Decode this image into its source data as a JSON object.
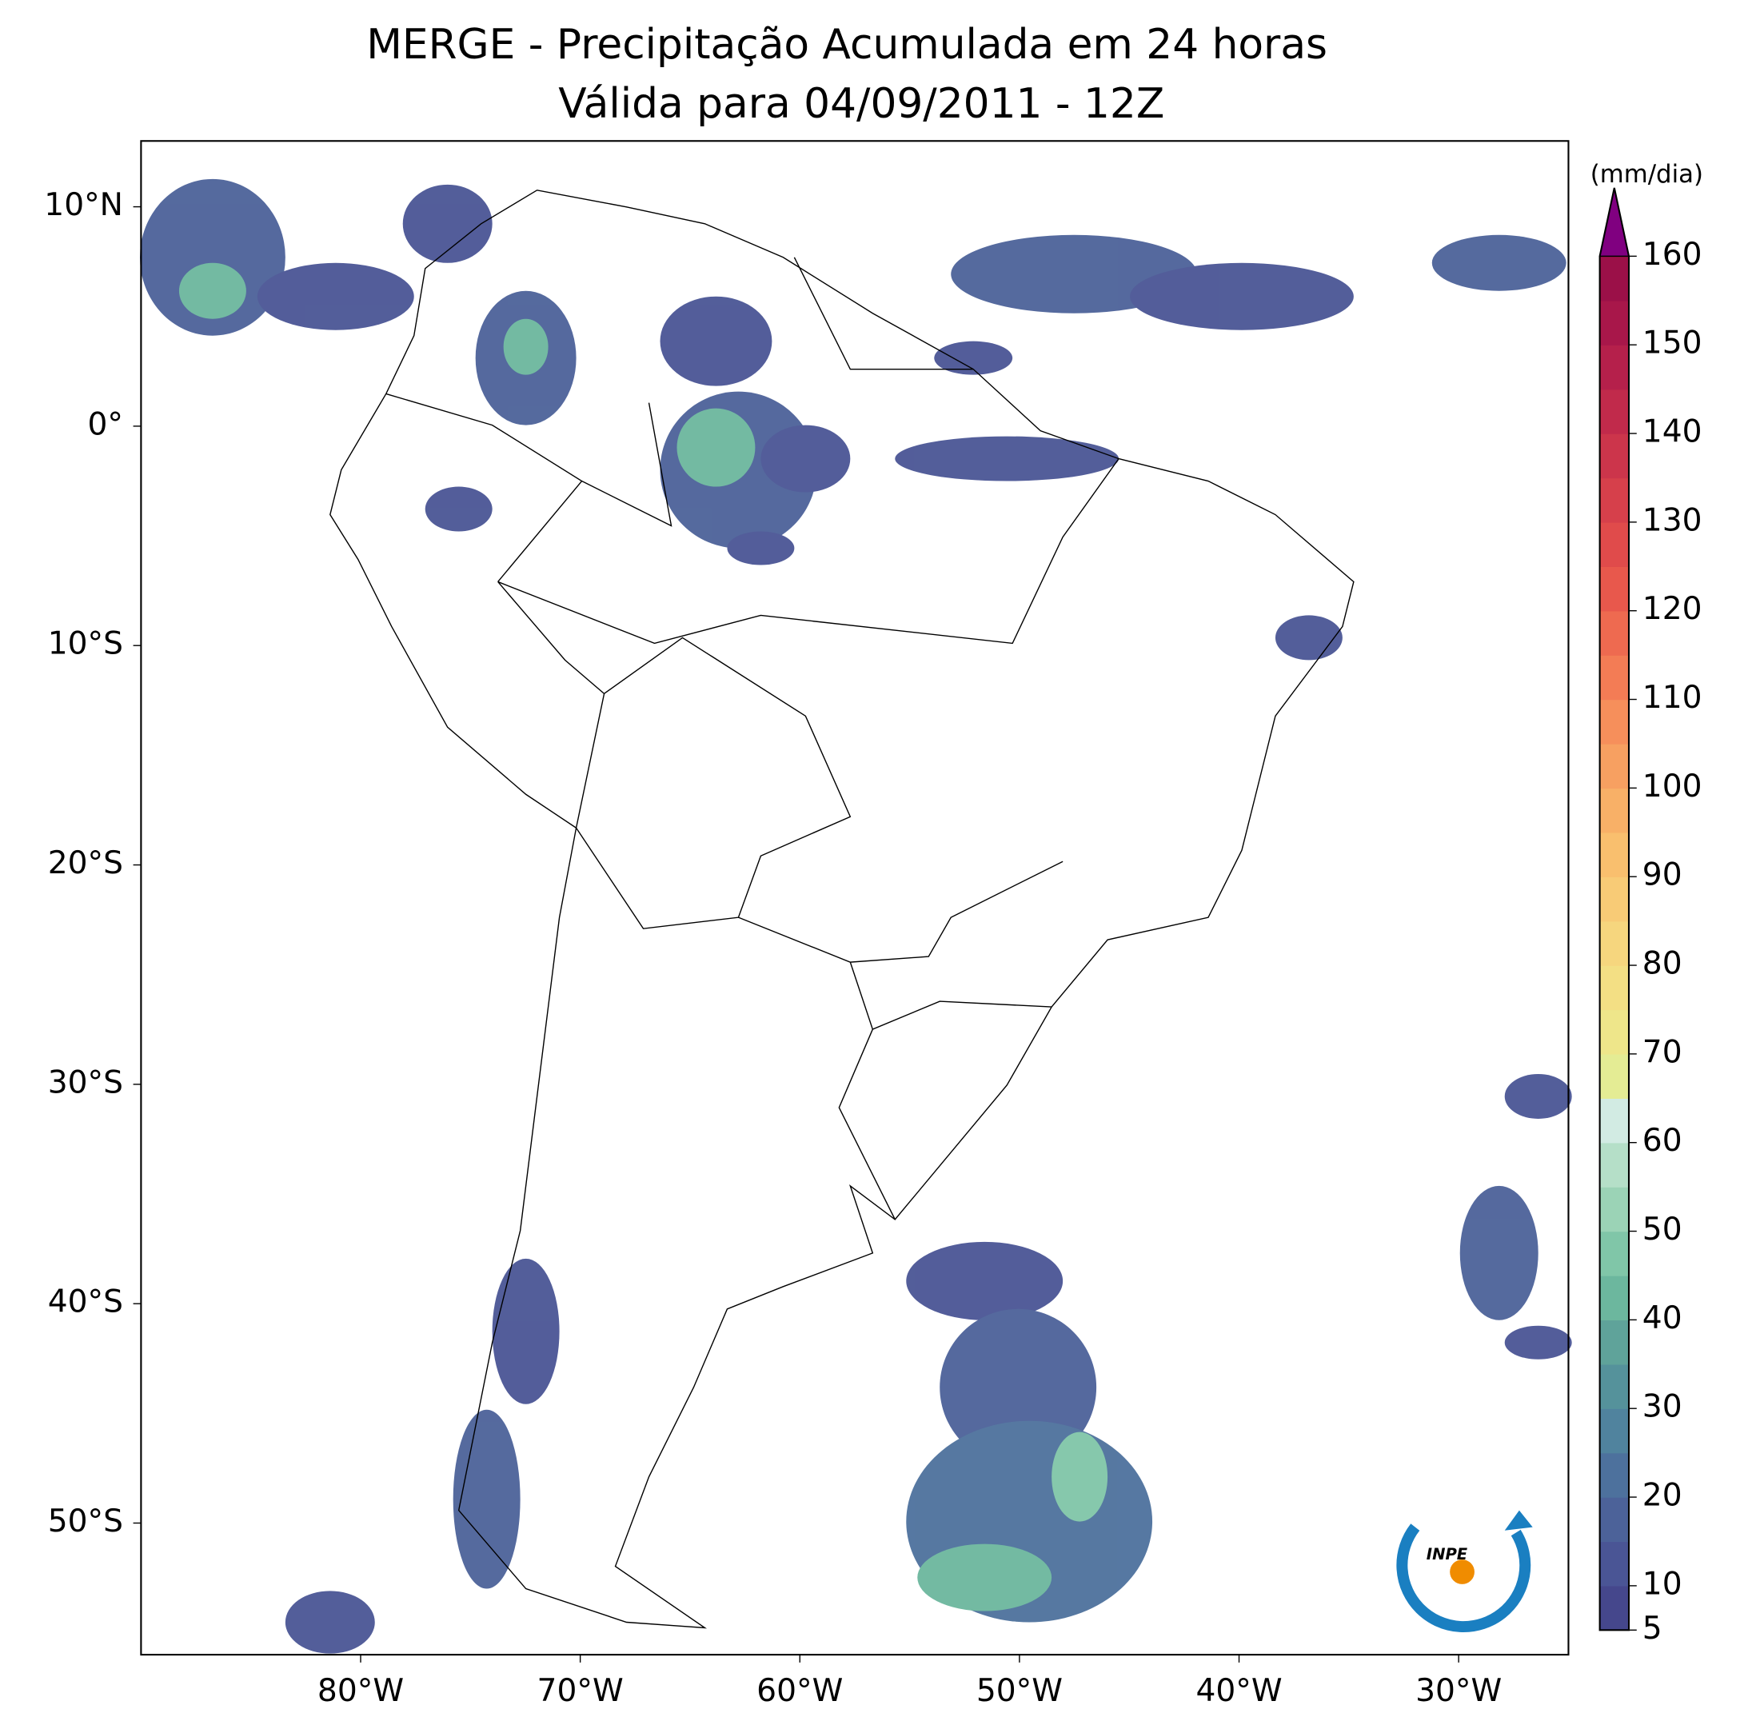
{
  "chart_data": {
    "type": "map",
    "title": "MERGE - Precipitação Acumulada em 24 horas",
    "subtitle": "Válida para 04/09/2011 - 12Z",
    "xlim": [
      -90,
      -25
    ],
    "ylim": [
      -56,
      13
    ],
    "xticks": [
      {
        "value": -80,
        "label": "80°W"
      },
      {
        "value": -70,
        "label": "70°W"
      },
      {
        "value": -60,
        "label": "60°W"
      },
      {
        "value": -50,
        "label": "50°W"
      },
      {
        "value": -40,
        "label": "40°W"
      },
      {
        "value": -30,
        "label": "30°W"
      }
    ],
    "yticks": [
      {
        "value": 10,
        "label": "10°N"
      },
      {
        "value": 0,
        "label": "0°"
      },
      {
        "value": -10,
        "label": "10°S"
      },
      {
        "value": -20,
        "label": "20°S"
      },
      {
        "value": -30,
        "label": "30°S"
      },
      {
        "value": -40,
        "label": "40°S"
      },
      {
        "value": -50,
        "label": "50°S"
      }
    ],
    "colorbar": {
      "label": "(mm/dia)",
      "lim": [
        5,
        160
      ],
      "ticks": [
        5,
        10,
        20,
        30,
        40,
        50,
        60,
        70,
        80,
        90,
        100,
        110,
        120,
        130,
        140,
        150,
        160
      ],
      "colors": [
        "#45478c",
        "#4a5595",
        "#4c6299",
        "#4d719d",
        "#50839e",
        "#55929b",
        "#5fa39a",
        "#6cb79e",
        "#80c6a8",
        "#9bd3b6",
        "#b5dfc8",
        "#d2ebe3",
        "#e4ec94",
        "#eee68a",
        "#f3df84",
        "#f6d67e",
        "#f8cb76",
        "#f9bf6e",
        "#f8b067",
        "#f7a061",
        "#f68f5b",
        "#f37c55",
        "#ee6a50",
        "#e8584c",
        "#e04b4b",
        "#d6404b",
        "#cc354b",
        "#c12a4b",
        "#b5204b",
        "#a8174a",
        "#9b1048"
      ],
      "extend_color": "#800080"
    },
    "logo": "INPE"
  }
}
